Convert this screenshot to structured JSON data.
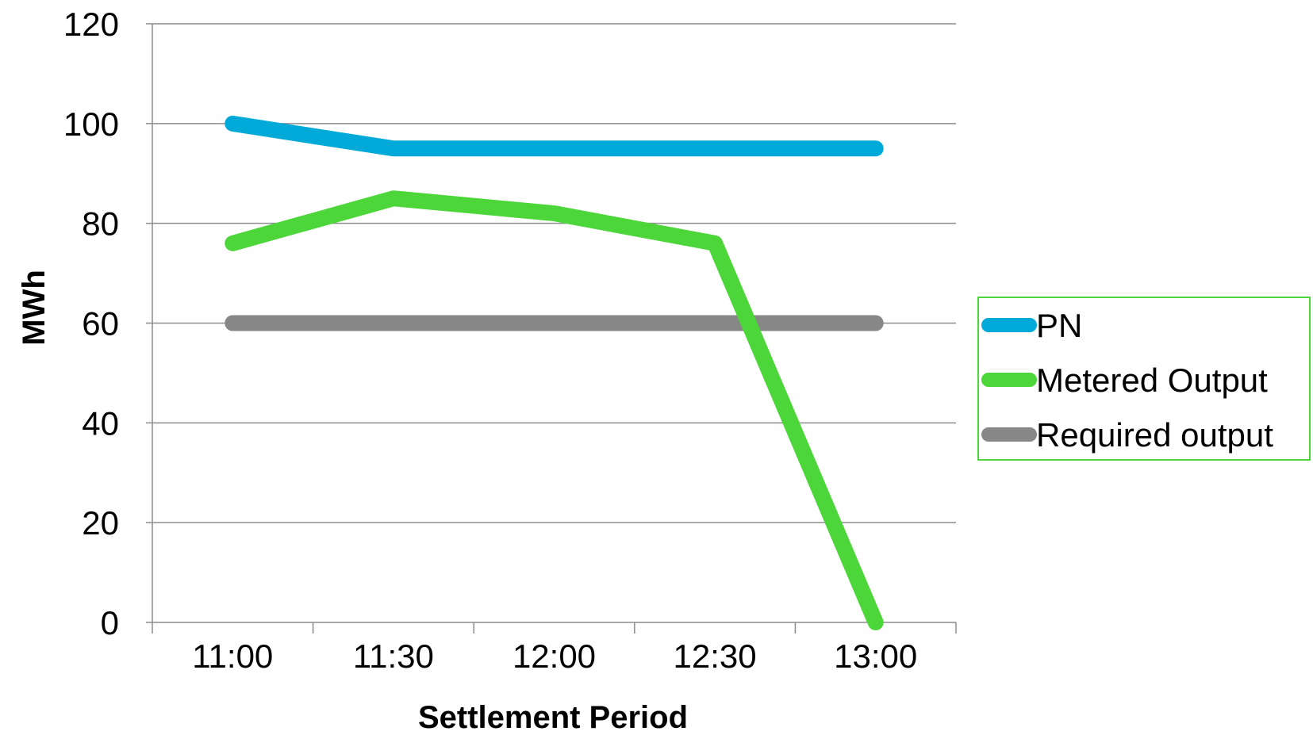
{
  "chart_data": {
    "type": "line",
    "categories": [
      "11:00",
      "11:30",
      "12:00",
      "12:30",
      "13:00"
    ],
    "series": [
      {
        "name": "PN",
        "values": [
          100,
          95,
          95,
          95,
          95
        ],
        "color": "#00AAD8"
      },
      {
        "name": "Metered Output",
        "values": [
          76,
          85,
          82,
          76,
          0
        ],
        "color": "#4CD63A"
      },
      {
        "name": "Required output",
        "values": [
          60,
          60,
          60,
          60,
          60
        ],
        "color": "#878787"
      }
    ],
    "xlabel": "Settlement Period",
    "ylabel": "MWh",
    "ylim": [
      0,
      120
    ],
    "yticks": [
      0,
      20,
      40,
      60,
      80,
      100,
      120
    ],
    "grid": true,
    "legend": "right"
  }
}
